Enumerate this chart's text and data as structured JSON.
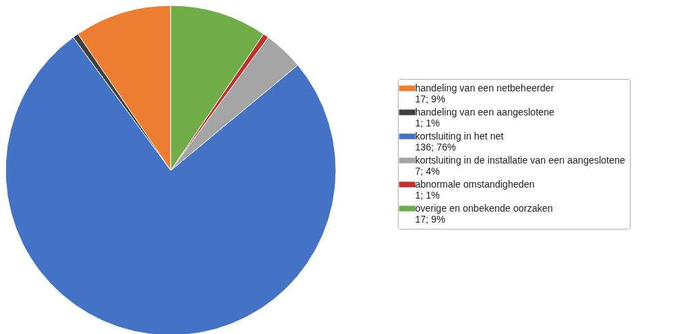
{
  "chart_data": {
    "type": "pie",
    "categories": [
      "handeling van een netbeheerder",
      "handeling van een aangeslotene",
      "kortsluiting in het net",
      "kortsluiting in de installatie van een aangeslotene",
      "abnormale omstandigheden",
      "overige en onbekende oorzaken"
    ],
    "values": [
      17,
      1,
      136,
      7,
      1,
      17
    ],
    "value_labels": [
      "17; 9%",
      "1; 1%",
      "136; 76%",
      "7; 4%",
      "1; 1%",
      "17; 9%"
    ],
    "colors": [
      "#ed7d31",
      "#404040",
      "#4472c4",
      "#a5a5a5",
      "#c0322d",
      "#70ad47"
    ],
    "legend": "right"
  }
}
